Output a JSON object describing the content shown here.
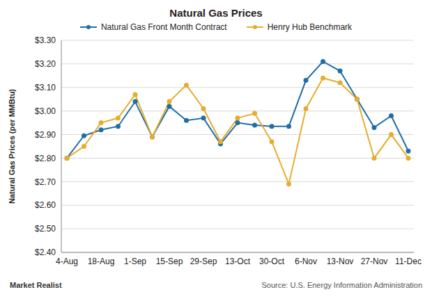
{
  "chart_data": {
    "type": "line",
    "title": "Natural Gas Prices",
    "y_label": "Natural Gas Prices (per MMBtu)",
    "categories": [
      "4-Aug",
      null,
      "18-Aug",
      null,
      "1-Sep",
      null,
      "15-Sep",
      null,
      "29-Sep",
      null,
      "13-Oct",
      null,
      "30-Oct",
      null,
      "6-Nov",
      null,
      "13-Nov",
      null,
      "27-Nov",
      null,
      "11-Dec"
    ],
    "series": [
      {
        "name": "Natural Gas Front Month Contract",
        "color": "#1f6ea5",
        "marker": "circle",
        "values": [
          2.8,
          2.895,
          2.92,
          2.935,
          3.04,
          2.89,
          3.02,
          2.96,
          2.97,
          2.86,
          2.95,
          2.94,
          2.935,
          2.935,
          3.13,
          3.21,
          3.17,
          3.05,
          2.93,
          2.98,
          2.83
        ]
      },
      {
        "name": "Henry Hub Benchmark",
        "color": "#e6ad2e",
        "marker": "circle",
        "values": [
          2.8,
          2.85,
          2.95,
          2.97,
          3.07,
          2.89,
          3.04,
          3.11,
          3.01,
          2.87,
          2.97,
          2.99,
          2.87,
          2.69,
          3.01,
          3.14,
          3.12,
          3.05,
          2.8,
          2.9,
          2.8
        ]
      }
    ],
    "ylim": [
      2.4,
      3.3
    ],
    "yticks": [
      {
        "value": 2.4,
        "label": "$2.40"
      },
      {
        "value": 2.5,
        "label": "$2.50"
      },
      {
        "value": 2.6,
        "label": "$2.60"
      },
      {
        "value": 2.7,
        "label": "$2.70"
      },
      {
        "value": 2.8,
        "label": "$2.80"
      },
      {
        "value": 2.9,
        "label": "$2.90"
      },
      {
        "value": 3.0,
        "label": "$3.00"
      },
      {
        "value": 3.1,
        "label": "$3.10"
      },
      {
        "value": 3.2,
        "label": "$3.20"
      },
      {
        "value": 3.3,
        "label": "$3.30"
      }
    ],
    "grid": true,
    "legend": "top",
    "annotations": [
      "Market Realist",
      "Source: U.S. Energy Information Administration"
    ]
  }
}
